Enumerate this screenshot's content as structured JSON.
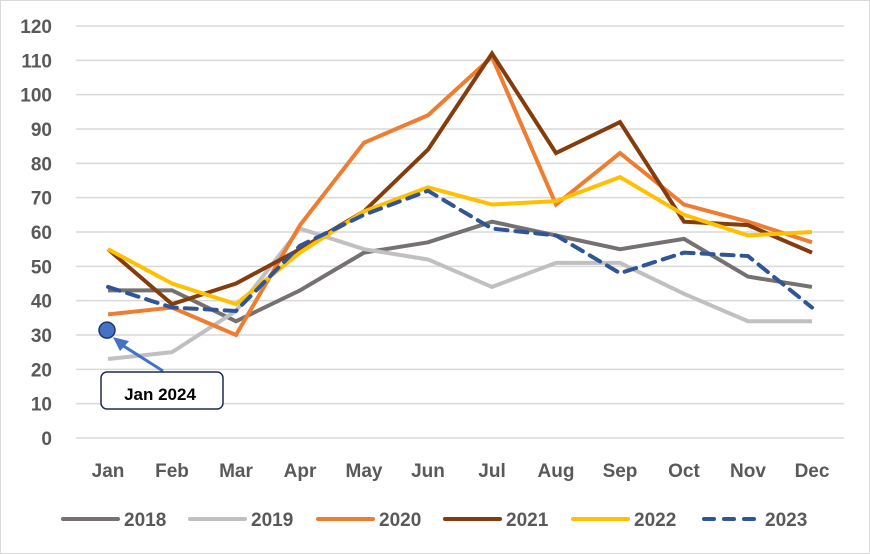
{
  "chart_data": {
    "type": "line",
    "title": "",
    "xlabel": "",
    "ylabel": "",
    "ylim": [
      0,
      120
    ],
    "yticks": [
      0,
      10,
      20,
      30,
      40,
      50,
      60,
      70,
      80,
      90,
      100,
      110,
      120
    ],
    "ytick_labels": [
      "0",
      "10",
      "20",
      "30",
      "40",
      "50",
      "60",
      "70",
      "80",
      "90",
      "100",
      "110",
      "120"
    ],
    "grid": true,
    "legend_position": "bottom",
    "categories": [
      "Jan",
      "Feb",
      "Mar",
      "Apr",
      "May",
      "Jun",
      "Jul",
      "Aug",
      "Sep",
      "Oct",
      "Nov",
      "Dec"
    ],
    "series": [
      {
        "name": "2018",
        "color": "#767171",
        "dashed": false,
        "values": [
          43,
          43,
          34,
          43,
          54,
          57,
          63,
          59,
          55,
          58,
          47,
          44
        ]
      },
      {
        "name": "2019",
        "color": "#c0c0c0",
        "dashed": false,
        "values": [
          23,
          25,
          37,
          61,
          55,
          52,
          44,
          51,
          51,
          42,
          34,
          34
        ]
      },
      {
        "name": "2020",
        "color": "#ed7d31",
        "dashed": false,
        "values": [
          36,
          38,
          30,
          62,
          86,
          94,
          111,
          68,
          83,
          68,
          63,
          57
        ]
      },
      {
        "name": "2021",
        "color": "#843c0c",
        "dashed": false,
        "values": [
          55,
          39,
          45,
          55,
          66,
          84,
          112,
          83,
          92,
          63,
          62,
          54
        ]
      },
      {
        "name": "2022",
        "color": "#ffc000",
        "dashed": false,
        "values": [
          55,
          45,
          39,
          54,
          66,
          73,
          68,
          69,
          76,
          65,
          59,
          60
        ]
      },
      {
        "name": "2023",
        "color": "#2f5597",
        "dashed": true,
        "values": [
          44,
          38,
          37,
          56,
          65,
          72,
          61,
          59,
          48,
          54,
          53,
          38
        ]
      }
    ],
    "annotations": [
      {
        "label": "Jan 2024",
        "x": "Jan",
        "y": 32,
        "marker_color": "#4472c4",
        "arrow_color": "#4472c4"
      }
    ]
  }
}
